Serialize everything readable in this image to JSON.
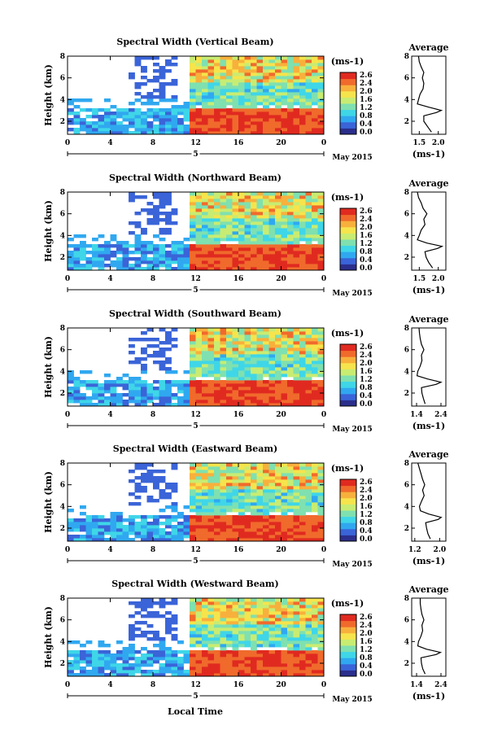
{
  "figure": {
    "bottom_xlabel": "Local Time"
  },
  "chart_data": [
    {
      "type": "heatmap",
      "title": "Spectral Width (Vertical Beam)",
      "ylabel": "Height (km)",
      "ylim": [
        0.8,
        8
      ],
      "yticks": [
        "8",
        "6",
        "4",
        "2"
      ],
      "xlim": [
        0,
        24
      ],
      "xticks": [
        "0",
        "4",
        "8",
        "12",
        "16",
        "20",
        "0"
      ],
      "date_day": "5",
      "date_month": "May 2015",
      "colorbar_unit": "(ms-1)",
      "colorbar_ticks": [
        "2.6",
        "2.4",
        "2.0",
        "1.6",
        "1.2",
        "0.8",
        "0.4",
        "0.0"
      ],
      "profile": {
        "title": "Average",
        "xlabel": "(ms-1)",
        "xticks": [
          "1.5",
          "2.0"
        ],
        "xlim": [
          1.3,
          2.2
        ],
        "yticks": [
          "8",
          "6",
          "4",
          "2"
        ],
        "heights": [
          1.0,
          1.5,
          2.0,
          2.5,
          2.8,
          3.0,
          3.3,
          3.6,
          4.0,
          4.5,
          5.0,
          5.5,
          6.0,
          6.5,
          7.0,
          7.5,
          8.0
        ],
        "values": [
          1.82,
          1.72,
          1.62,
          1.62,
          1.95,
          2.08,
          1.75,
          1.45,
          1.48,
          1.52,
          1.6,
          1.62,
          1.58,
          1.62,
          1.55,
          1.5,
          1.48
        ]
      }
    },
    {
      "type": "heatmap",
      "title": "Spectral Width (Northward Beam)",
      "ylabel": "Height (km)",
      "ylim": [
        0.8,
        8
      ],
      "yticks": [
        "8",
        "6",
        "4",
        "2"
      ],
      "xlim": [
        0,
        24
      ],
      "xticks": [
        "0",
        "4",
        "8",
        "12",
        "16",
        "20",
        "0"
      ],
      "date_day": "5",
      "date_month": "May 2015",
      "colorbar_unit": "(ms-1)",
      "colorbar_ticks": [
        "2.6",
        "2.4",
        "2.0",
        "1.6",
        "1.2",
        "0.8",
        "0.4",
        "0.0"
      ],
      "profile": {
        "title": "Average",
        "xlabel": "(ms-1)",
        "xticks": [
          "1.5",
          "2.0"
        ],
        "xlim": [
          1.3,
          2.2
        ],
        "yticks": [
          "8",
          "6",
          "4",
          "2"
        ],
        "heights": [
          1.0,
          1.5,
          2.0,
          2.5,
          2.8,
          3.0,
          3.3,
          3.6,
          4.0,
          4.5,
          5.0,
          5.5,
          6.0,
          6.5,
          7.0,
          7.5,
          8.0
        ],
        "values": [
          1.85,
          1.75,
          1.68,
          1.65,
          1.98,
          2.1,
          1.7,
          1.45,
          1.5,
          1.55,
          1.65,
          1.62,
          1.7,
          1.6,
          1.55,
          1.48,
          1.45
        ]
      }
    },
    {
      "type": "heatmap",
      "title": "Spectral Width (Southward Beam)",
      "ylabel": "Height (km)",
      "ylim": [
        0.8,
        8
      ],
      "yticks": [
        "8",
        "6",
        "4",
        "2"
      ],
      "xlim": [
        0,
        24
      ],
      "xticks": [
        "0",
        "4",
        "8",
        "12",
        "16",
        "20",
        "0"
      ],
      "date_day": "5",
      "date_month": "May 2015",
      "colorbar_unit": "(ms-1)",
      "colorbar_ticks": [
        "2.6",
        "2.4",
        "2.0",
        "1.6",
        "1.2",
        "0.8",
        "0.4",
        "0.0"
      ],
      "profile": {
        "title": "Average",
        "xlabel": "(ms-1)",
        "xticks": [
          "1.4",
          "2.4"
        ],
        "xlim": [
          1.2,
          2.6
        ],
        "yticks": [
          "8",
          "6",
          "4",
          "2"
        ],
        "heights": [
          1.0,
          1.5,
          2.0,
          2.5,
          2.8,
          3.0,
          3.3,
          3.6,
          4.0,
          4.5,
          5.0,
          5.5,
          6.0,
          6.5,
          7.0,
          7.5,
          8.0
        ],
        "values": [
          1.75,
          1.68,
          1.62,
          1.6,
          2.2,
          2.4,
          1.85,
          1.42,
          1.45,
          1.55,
          1.62,
          1.6,
          1.7,
          1.6,
          1.55,
          1.52,
          1.5
        ]
      }
    },
    {
      "type": "heatmap",
      "title": "Spectral Width (Eastward Beam)",
      "ylabel": "Height (km)",
      "ylim": [
        0.8,
        8
      ],
      "yticks": [
        "8",
        "6",
        "4",
        "2"
      ],
      "xlim": [
        0,
        24
      ],
      "xticks": [
        "0",
        "4",
        "8",
        "12",
        "16",
        "20",
        "0"
      ],
      "date_day": "5",
      "date_month": "May 2015",
      "colorbar_unit": "(ms-1)",
      "colorbar_ticks": [
        "2.6",
        "2.4",
        "2.0",
        "1.6",
        "1.2",
        "0.8",
        "0.4",
        "0.0"
      ],
      "profile": {
        "title": "Average",
        "xlabel": "(ms-1)",
        "xticks": [
          "1.2",
          "2.0"
        ],
        "xlim": [
          1.1,
          2.2
        ],
        "yticks": [
          "8",
          "6",
          "4",
          "2"
        ],
        "heights": [
          1.0,
          1.5,
          2.0,
          2.5,
          2.8,
          3.0,
          3.3,
          3.6,
          4.0,
          4.5,
          5.0,
          5.5,
          6.0,
          6.5,
          7.0,
          7.5,
          8.0
        ],
        "values": [
          1.7,
          1.62,
          1.58,
          1.55,
          1.95,
          2.05,
          1.65,
          1.38,
          1.35,
          1.42,
          1.5,
          1.45,
          1.52,
          1.45,
          1.4,
          1.35,
          1.3
        ]
      }
    },
    {
      "type": "heatmap",
      "title": "Spectral Width (Westward Beam)",
      "ylabel": "Height (km)",
      "ylim": [
        0.8,
        8
      ],
      "yticks": [
        "8",
        "6",
        "4",
        "2"
      ],
      "xlim": [
        0,
        24
      ],
      "xticks": [
        "0",
        "4",
        "8",
        "12",
        "16",
        "20",
        "0"
      ],
      "date_day": "5",
      "date_month": "May 2015",
      "colorbar_unit": "(ms-1)",
      "colorbar_ticks": [
        "2.6",
        "2.4",
        "2.0",
        "1.6",
        "1.2",
        "0.8",
        "0.4",
        "0.0"
      ],
      "profile": {
        "title": "Average",
        "xlabel": "(ms-1)",
        "xticks": [
          "1.4",
          "2.4"
        ],
        "xlim": [
          1.2,
          2.6
        ],
        "yticks": [
          "8",
          "6",
          "4",
          "2"
        ],
        "heights": [
          1.0,
          1.5,
          2.0,
          2.5,
          2.8,
          3.0,
          3.3,
          3.6,
          4.0,
          4.5,
          5.0,
          5.5,
          6.0,
          6.5,
          7.0,
          7.5,
          8.0
        ],
        "values": [
          1.75,
          1.65,
          1.6,
          1.58,
          2.2,
          2.38,
          1.8,
          1.45,
          1.48,
          1.58,
          1.65,
          1.62,
          1.7,
          1.62,
          1.58,
          1.55,
          1.55
        ]
      }
    }
  ],
  "colors": {
    "scale": [
      "#2b2f8c",
      "#3a64d8",
      "#30a8f0",
      "#3fd6e8",
      "#7fe0b0",
      "#c8ec72",
      "#f6e44c",
      "#f8b03c",
      "#f06a2c",
      "#e02a20"
    ]
  }
}
